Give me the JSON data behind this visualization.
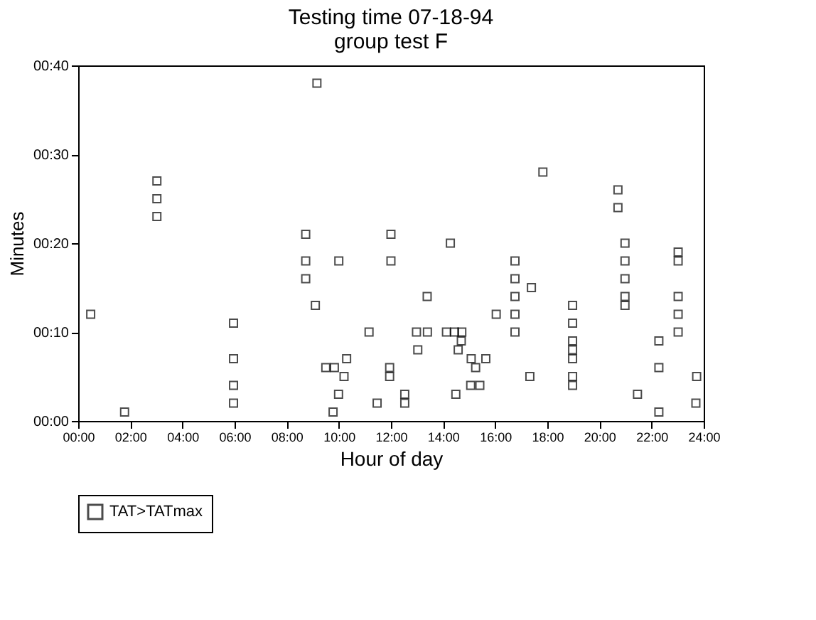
{
  "chart_data": {
    "type": "scatter",
    "title": [
      "Testing time   07-18-94",
      "group test F"
    ],
    "xlabel": "Hour of day",
    "ylabel": "Minutes",
    "series": [
      {
        "name": "TAT>TATmax",
        "color": "#000000",
        "x": [
          0.48,
          1.78,
          3.02,
          3.02,
          3.02,
          5.96,
          5.96,
          5.96,
          5.96,
          8.73,
          8.73,
          8.73,
          9.16,
          9.1,
          10.0,
          9.5,
          9.83,
          10.3,
          10.2,
          9.99,
          9.78,
          11.16,
          11.47,
          12.0,
          12.0,
          11.95,
          11.95,
          12.53,
          12.53,
          12.98,
          13.4,
          13.03,
          13.39,
          14.28,
          14.13,
          14.44,
          14.72,
          14.7,
          14.58,
          15.08,
          15.64,
          15.25,
          15.06,
          15.41,
          14.49,
          16.04,
          17.83,
          16.76,
          16.76,
          16.76,
          16.76,
          16.76,
          17.39,
          17.33,
          18.97,
          18.97,
          18.97,
          18.97,
          18.97,
          18.97,
          18.97,
          20.71,
          20.71,
          20.98,
          20.98,
          20.98,
          20.98,
          20.98,
          21.46,
          22.28,
          22.28,
          22.28,
          23.02,
          23.02,
          23.02,
          23.02,
          23.02,
          23.73,
          23.7
        ],
        "values": [
          12,
          1,
          27,
          25,
          23,
          11,
          7,
          4,
          2,
          21,
          18,
          16,
          38,
          13,
          18,
          6,
          6,
          7,
          5,
          3,
          1,
          10,
          2,
          21,
          18,
          6,
          5,
          3,
          2,
          10,
          10,
          8,
          14,
          20,
          10,
          10,
          10,
          9,
          8,
          7,
          7,
          6,
          4,
          4,
          3,
          12,
          28,
          18,
          16,
          14,
          12,
          10,
          15,
          5,
          13,
          11,
          9,
          8,
          7,
          5,
          4,
          26,
          24,
          20,
          18,
          16,
          14,
          13,
          3,
          9,
          6,
          1,
          19,
          18,
          14,
          12,
          10,
          5,
          2
        ]
      }
    ],
    "marker": "square",
    "grid": false,
    "legend": "bottom",
    "xlim": [
      0,
      24
    ],
    "xticks": [
      {
        "value": 0,
        "label": "00:00"
      },
      {
        "value": 2,
        "label": "02:00"
      },
      {
        "value": 4,
        "label": "04:00"
      },
      {
        "value": 6,
        "label": "06:00"
      },
      {
        "value": 8,
        "label": "08:00"
      },
      {
        "value": 10,
        "label": "10:00"
      },
      {
        "value": 12,
        "label": "12:00"
      },
      {
        "value": 14,
        "label": "14:00"
      },
      {
        "value": 16,
        "label": "16:00"
      },
      {
        "value": 18,
        "label": "18:00"
      },
      {
        "value": 20,
        "label": "20:00"
      },
      {
        "value": 22,
        "label": "22:00"
      },
      {
        "value": 24,
        "label": "24:00"
      }
    ],
    "ylim": [
      0,
      40
    ],
    "yticks": [
      {
        "value": 0,
        "label": "00:00"
      },
      {
        "value": 10,
        "label": "00:10"
      },
      {
        "value": 20,
        "label": "00:20"
      },
      {
        "value": 30,
        "label": "00:30"
      },
      {
        "value": 40,
        "label": "00:40"
      }
    ]
  }
}
